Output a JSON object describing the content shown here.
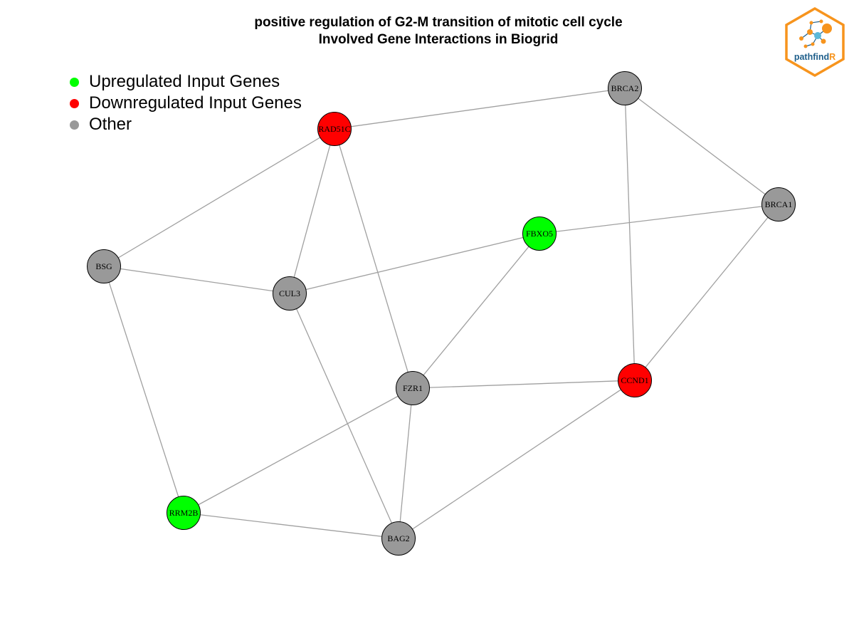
{
  "title": {
    "line1": "positive regulation of G2-M transition of mitotic cell cycle",
    "line2": "Involved Gene Interactions in Biogrid"
  },
  "legend": [
    {
      "label": "Upregulated Input Genes",
      "color": "#00ff00"
    },
    {
      "label": "Downregulated Input Genes",
      "color": "#ff0000"
    },
    {
      "label": "Other",
      "color": "#999999"
    }
  ],
  "logo": {
    "text_main": "pathfind",
    "text_accent": "R"
  },
  "colors": {
    "up": "#00ff00",
    "down": "#ff0000",
    "other": "#999999",
    "edge": "#a0a0a0",
    "logo": "#f7941d",
    "logo_text": "#1f5f8b"
  },
  "nodes": [
    {
      "id": "BRCA2",
      "status": "other"
    },
    {
      "id": "RAD51C",
      "status": "down"
    },
    {
      "id": "BRCA1",
      "status": "other"
    },
    {
      "id": "FBXO5",
      "status": "up"
    },
    {
      "id": "BSG",
      "status": "other"
    },
    {
      "id": "CUL3",
      "status": "other"
    },
    {
      "id": "FZR1",
      "status": "other"
    },
    {
      "id": "CCND1",
      "status": "down"
    },
    {
      "id": "RRM2B",
      "status": "up"
    },
    {
      "id": "BAG2",
      "status": "other"
    }
  ],
  "edges": [
    [
      "RAD51C",
      "BRCA2"
    ],
    [
      "BRCA2",
      "BRCA1"
    ],
    [
      "BRCA2",
      "CCND1"
    ],
    [
      "RAD51C",
      "BSG"
    ],
    [
      "RAD51C",
      "CUL3"
    ],
    [
      "RAD51C",
      "FZR1"
    ],
    [
      "FBXO5",
      "BRCA1"
    ],
    [
      "FBXO5",
      "CUL3"
    ],
    [
      "FBXO5",
      "FZR1"
    ],
    [
      "BRCA1",
      "CCND1"
    ],
    [
      "BSG",
      "CUL3"
    ],
    [
      "BSG",
      "RRM2B"
    ],
    [
      "CUL3",
      "BAG2"
    ],
    [
      "FZR1",
      "CCND1"
    ],
    [
      "FZR1",
      "RRM2B"
    ],
    [
      "FZR1",
      "BAG2"
    ],
    [
      "CCND1",
      "BAG2"
    ],
    [
      "RRM2B",
      "BAG2"
    ]
  ]
}
